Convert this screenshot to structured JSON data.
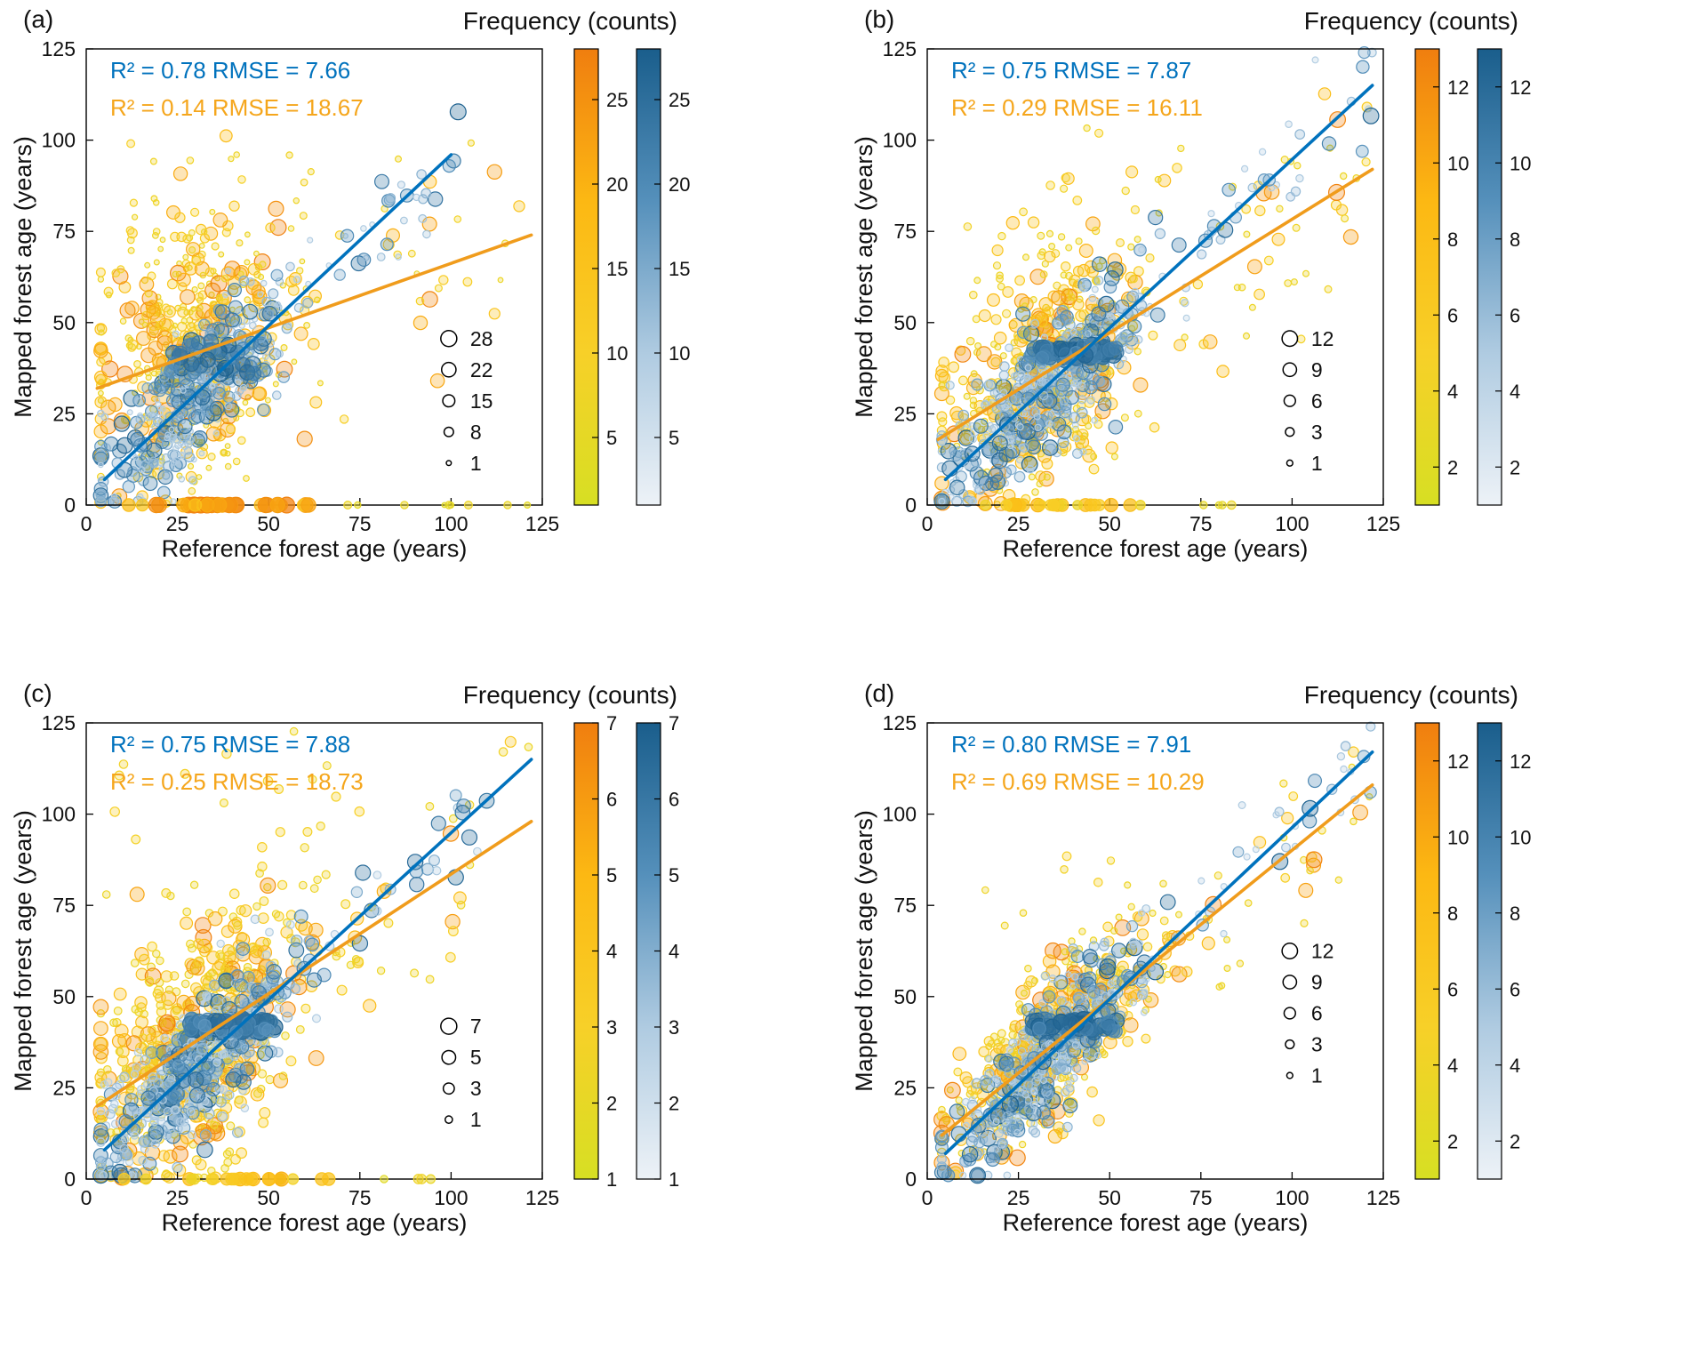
{
  "figure": {
    "background": "#ffffff",
    "colorbar_title": "Frequency (counts)",
    "xlabel": "Reference forest age (years)",
    "ylabel": "Mapped forest age (years)",
    "colors": {
      "blue_line": "#0072BD",
      "blue_text": "#0072BD",
      "orange_line": "#F09C1C",
      "orange_text": "#F5A61C",
      "axis": "#000000",
      "yellow_scale": [
        "#D7DF23",
        "#F7D028",
        "#FCB813",
        "#F07E0F"
      ],
      "blue_scale": [
        "#EDF2F7",
        "#AFCBE1",
        "#5590BB",
        "#1A5E8C"
      ]
    }
  },
  "chart_data": [
    {
      "panel_label": "(a)",
      "type": "scatter",
      "xlim": [
        0,
        125
      ],
      "ylim": [
        0,
        125
      ],
      "xticks": [
        0,
        25,
        50,
        75,
        100,
        125
      ],
      "yticks": [
        0,
        25,
        50,
        75,
        100,
        125
      ],
      "stats": {
        "blue": {
          "r2": 0.78,
          "rmse": 7.66
        },
        "orange": {
          "r2": 0.14,
          "rmse": 18.67
        }
      },
      "annotation_blue": "R² = 0.78 RMSE = 7.66",
      "annotation_orange": "R² = 0.14 RMSE = 18.67",
      "fit_blue": {
        "x1": 5,
        "y1": 7,
        "x2": 100,
        "y2": 96
      },
      "fit_orange": {
        "x1": 3,
        "y1": 32,
        "x2": 122,
        "y2": 74
      },
      "size_legend": [
        28,
        22,
        15,
        8,
        1
      ],
      "colorbar": {
        "min": 1,
        "max": 28,
        "ticks": [
          5,
          10,
          15,
          20,
          25
        ]
      },
      "legend_y_frac": 0.635,
      "gen": {
        "seed": 11,
        "nb": 420,
        "ny": 520,
        "xm": 30,
        "xs": 13,
        "tail": 0.05,
        "bnoise": 9,
        "bxmax": 102,
        "ynoise": 17,
        "band": {
          "n": 30,
          "x1": 22,
          "x2": 46,
          "y1": 36,
          "y2": 45
        },
        "zero": {
          "n": 40,
          "x1": 8,
          "x2": 66,
          "cmin": 0.5,
          "cmax": 1.0,
          "sn": 9,
          "sx1": 70,
          "sx2": 122
        },
        "spray": {
          "n": 26,
          "x1": 5,
          "x2": 65,
          "y1": 55,
          "y2": 100
        }
      }
    },
    {
      "panel_label": "(b)",
      "type": "scatter",
      "xlim": [
        0,
        125
      ],
      "ylim": [
        0,
        125
      ],
      "xticks": [
        0,
        25,
        50,
        75,
        100,
        125
      ],
      "yticks": [
        0,
        25,
        50,
        75,
        100,
        125
      ],
      "stats": {
        "blue": {
          "r2": 0.75,
          "rmse": 7.87
        },
        "orange": {
          "r2": 0.29,
          "rmse": 16.11
        }
      },
      "annotation_blue": "R² = 0.75 RMSE = 7.87",
      "annotation_orange": "R² = 0.29 RMSE = 16.11",
      "fit_blue": {
        "x1": 5,
        "y1": 7,
        "x2": 122,
        "y2": 115
      },
      "fit_orange": {
        "x1": 3,
        "y1": 18,
        "x2": 122,
        "y2": 92
      },
      "size_legend": [
        12,
        9,
        6,
        3,
        1
      ],
      "colorbar": {
        "min": 1,
        "max": 13,
        "ticks": [
          2,
          4,
          6,
          8,
          10,
          12
        ]
      },
      "legend_y_frac": 0.635,
      "gen": {
        "seed": 22,
        "nb": 470,
        "ny": 560,
        "xm": 32,
        "xs": 14,
        "tail": 0.07,
        "bnoise": 9,
        "bxmax": 122,
        "ynoise": 15,
        "band": {
          "n": 70,
          "x1": 28,
          "x2": 52,
          "y1": 40,
          "y2": 44
        },
        "zero": {
          "n": 26,
          "x1": 8,
          "x2": 68,
          "cmin": 0.25,
          "cmax": 0.7,
          "sn": 4,
          "sx1": 72,
          "sx2": 100
        },
        "spray": {
          "n": 18,
          "x1": 10,
          "x2": 70,
          "y1": 60,
          "y2": 105
        }
      }
    },
    {
      "panel_label": "(c)",
      "type": "scatter",
      "xlim": [
        0,
        125
      ],
      "ylim": [
        0,
        125
      ],
      "xticks": [
        0,
        25,
        50,
        75,
        100,
        125
      ],
      "yticks": [
        0,
        25,
        50,
        75,
        100,
        125
      ],
      "stats": {
        "blue": {
          "r2": 0.75,
          "rmse": 7.88
        },
        "orange": {
          "r2": 0.25,
          "rmse": 18.73
        }
      },
      "annotation_blue": "R² = 0.75 RMSE = 7.88",
      "annotation_orange": "R² = 0.25 RMSE = 18.73",
      "fit_blue": {
        "x1": 5,
        "y1": 8,
        "x2": 122,
        "y2": 115
      },
      "fit_orange": {
        "x1": 3,
        "y1": 20,
        "x2": 122,
        "y2": 98
      },
      "size_legend": [
        7,
        5,
        3,
        1
      ],
      "colorbar": {
        "min": 1,
        "max": 7,
        "ticks": [
          1,
          2,
          3,
          4,
          5,
          6,
          7
        ]
      },
      "legend_y_frac": 0.665,
      "gen": {
        "seed": 33,
        "nb": 470,
        "ny": 590,
        "xm": 30,
        "xs": 14,
        "tail": 0.05,
        "bnoise": 9,
        "bxmax": 122,
        "ynoise": 16,
        "band": {
          "n": 70,
          "x1": 28,
          "x2": 52,
          "y1": 40,
          "y2": 44
        },
        "zero": {
          "n": 24,
          "x1": 10,
          "x2": 70,
          "cmin": 0.3,
          "cmax": 0.8,
          "sn": 4,
          "sx1": 72,
          "sx2": 95
        },
        "spray": {
          "n": 34,
          "x1": 5,
          "x2": 75,
          "y1": 55,
          "y2": 125
        }
      }
    },
    {
      "panel_label": "(d)",
      "type": "scatter",
      "xlim": [
        0,
        125
      ],
      "ylim": [
        0,
        125
      ],
      "xticks": [
        0,
        25,
        50,
        75,
        100,
        125
      ],
      "yticks": [
        0,
        25,
        50,
        75,
        100,
        125
      ],
      "stats": {
        "blue": {
          "r2": 0.8,
          "rmse": 7.91
        },
        "orange": {
          "r2": 0.69,
          "rmse": 10.29
        }
      },
      "annotation_blue": "R² = 0.80 RMSE = 7.91",
      "annotation_orange": "R² = 0.69 RMSE = 10.29",
      "fit_blue": {
        "x1": 5,
        "y1": 7,
        "x2": 122,
        "y2": 117
      },
      "fit_orange": {
        "x1": 4,
        "y1": 12,
        "x2": 122,
        "y2": 108
      },
      "size_legend": [
        12,
        9,
        6,
        3,
        1
      ],
      "colorbar": {
        "min": 1,
        "max": 13,
        "ticks": [
          2,
          4,
          6,
          8,
          10,
          12
        ]
      },
      "legend_y_frac": 0.5,
      "gen": {
        "seed": 44,
        "nb": 460,
        "ny": 520,
        "xm": 33,
        "xs": 14,
        "tail": 0.07,
        "bnoise": 8,
        "bxmax": 122,
        "ynoise": 10,
        "band": {
          "n": 60,
          "x1": 28,
          "x2": 52,
          "y1": 40,
          "y2": 44
        },
        "zero": {
          "n": 0,
          "x1": 0,
          "x2": 0,
          "cmin": 0,
          "cmax": 0,
          "sn": 0,
          "sx1": 0,
          "sx2": 0
        },
        "spray": {
          "n": 10,
          "x1": 15,
          "x2": 60,
          "y1": 60,
          "y2": 90
        }
      }
    }
  ]
}
